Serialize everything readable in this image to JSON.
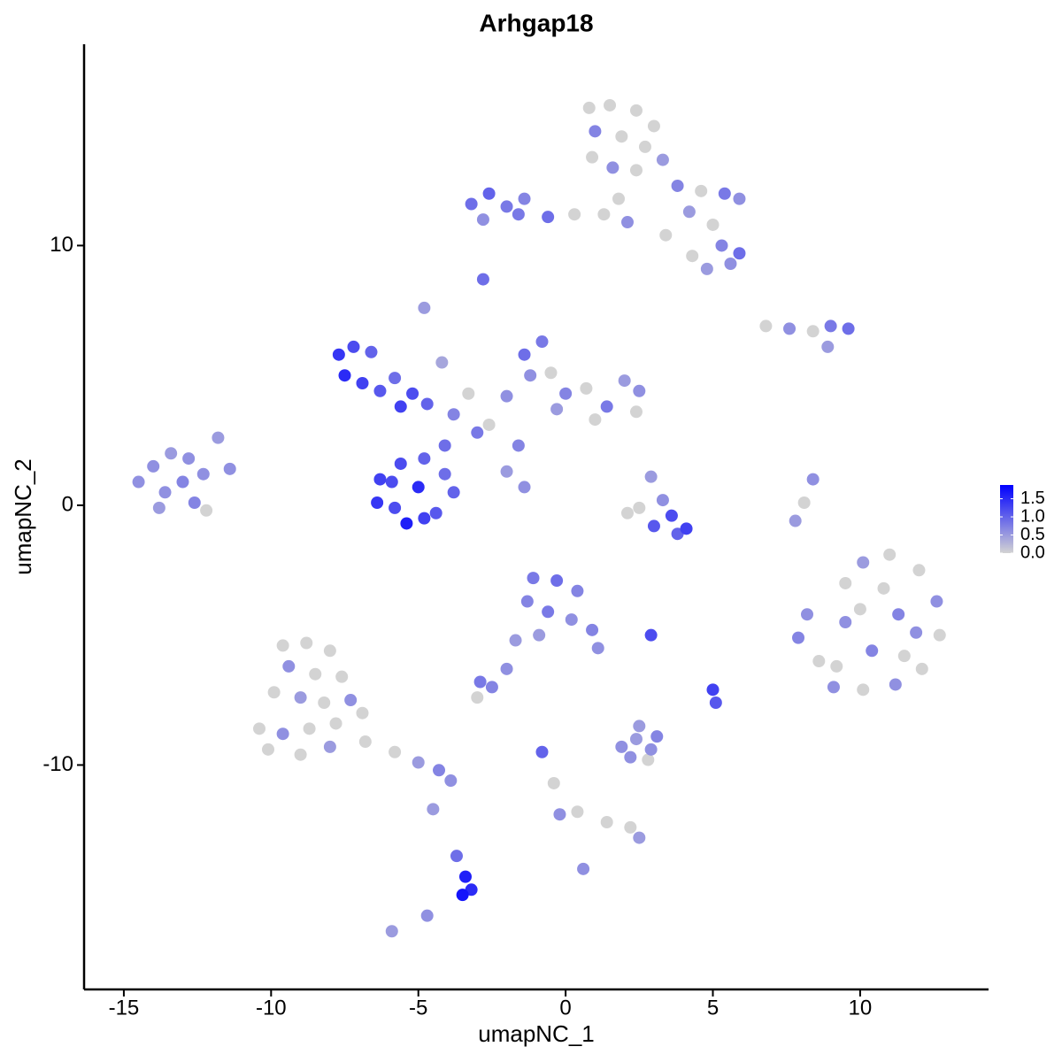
{
  "chart_data": {
    "type": "scatter",
    "title": "Arhgap18",
    "x_label": "umapNC_1",
    "y_label": "umapNC_2",
    "xlim": [
      -16.35,
      14.36
    ],
    "ylim": [
      -18.64,
      17.75
    ],
    "xticks": [
      -15,
      -10,
      -5,
      0,
      5,
      10
    ],
    "yticks": [
      -10,
      0,
      10
    ],
    "grid": false,
    "color_low": "#d3d3d3",
    "color_high": "#0000ff",
    "colorbar_lim": [
      0,
      1.88
    ],
    "colorbar_ticks": [
      {
        "value": 0,
        "label": "0.0"
      },
      {
        "value": 0.5,
        "label": "0.5"
      },
      {
        "value": 1,
        "label": "1.0"
      },
      {
        "value": 1.5,
        "label": "1.5"
      }
    ],
    "x": [
      0.8,
      1.5,
      2.4,
      3.0,
      1.0,
      1.9,
      2.7,
      0.9,
      1.6,
      2.4,
      3.3,
      1.8,
      2.1,
      1.3,
      3.8,
      4.6,
      5.4,
      5.9,
      4.2,
      5.0,
      5.3,
      5.9,
      5.6,
      4.8,
      4.3,
      3.4,
      -3.2,
      -2.6,
      -2.0,
      -1.4,
      -2.8,
      -0.6,
      0.3,
      -1.6,
      -2.8,
      6.8,
      7.6,
      8.4,
      9.0,
      9.6,
      8.9,
      -7.7,
      -7.2,
      -6.6,
      -7.5,
      -6.9,
      -6.3,
      -5.8,
      -5.2,
      -4.7,
      -5.6,
      -4.8,
      -4.2,
      -3.8,
      -3.3,
      -2.6,
      -2.0,
      -1.4,
      -0.8,
      -1.2,
      -0.5,
      0,
      0.7,
      1.4,
      2.0,
      2.5,
      2.4,
      1.0,
      -0.3,
      -1.6,
      -3.0,
      -4.1,
      -2.0,
      -1.4,
      -6.3,
      -5.6,
      -4.8,
      -4.1,
      -3.8,
      -6.4,
      -5.8,
      -5.0,
      -4.4,
      -5.4,
      -4.8,
      -5.9,
      -14.5,
      -14.0,
      -13.4,
      -12.8,
      -13.6,
      -13.0,
      -12.3,
      -11.8,
      -11.4,
      -12.6,
      -13.8,
      -12.2,
      2.9,
      3.3,
      2.5,
      3.6,
      4.1,
      3.0,
      2.1,
      3.8,
      8.4,
      8.1,
      7.8,
      8.2,
      7.9,
      8.6,
      9.1,
      9.5,
      10.1,
      11.0,
      12.0,
      12.6,
      12.7,
      12.1,
      11.2,
      10.1,
      10.4,
      9.5,
      11.3,
      10.8,
      11.9,
      9.2,
      10.0,
      11.5,
      -1.1,
      -0.3,
      0.4,
      -1.3,
      -0.6,
      0.2,
      0.9,
      -0.9,
      1.1,
      -1.7,
      -2.0,
      -2.9,
      -2.5,
      -3.0,
      2.9,
      5.0,
      5.1,
      -9.6,
      -8.8,
      -8.0,
      -9.4,
      -8.5,
      -7.6,
      -9.9,
      -9.0,
      -8.2,
      -7.3,
      -10.4,
      -9.6,
      -8.7,
      -7.8,
      -6.9,
      -10.1,
      -9.0,
      -8.0,
      -6.8,
      -5.8,
      -5.0,
      -4.3,
      -3.9,
      -4.5,
      -3.7,
      -3.4,
      -3.5,
      -3.2,
      -5.9,
      -4.7,
      1.9,
      2.4,
      2.9,
      3.1,
      2.2,
      2.8,
      2.5,
      -0.8,
      -0.4,
      -0.2,
      0.4,
      1.4,
      2.2,
      2.5,
      0.6
    ],
    "values": [
      15.3,
      15.4,
      15.2,
      14.6,
      14.4,
      14.2,
      13.8,
      13.4,
      13.0,
      12.9,
      13.3,
      11.8,
      10.9,
      11.2,
      12.3,
      12.1,
      12.0,
      11.8,
      11.3,
      10.8,
      10.0,
      9.7,
      9.3,
      9.1,
      9.6,
      10.4,
      11.6,
      12.0,
      11.5,
      11.8,
      11.0,
      11.1,
      11.2,
      11.2,
      8.7,
      6.9,
      6.8,
      6.7,
      6.9,
      6.8,
      6.1,
      5.8,
      6.1,
      5.9,
      5.0,
      4.7,
      4.4,
      4.9,
      4.3,
      3.9,
      3.8,
      7.6,
      5.5,
      3.5,
      4.3,
      3.1,
      4.2,
      5.8,
      6.3,
      5.0,
      5.1,
      4.3,
      4.5,
      3.8,
      4.8,
      4.4,
      3.6,
      3.3,
      3.7,
      2.3,
      2.8,
      2.3,
      1.3,
      0.7,
      1.0,
      1.6,
      1.8,
      1.2,
      0.5,
      0.1,
      -0.1,
      0.7,
      -0.3,
      -0.7,
      -0.5,
      0.9,
      0.9,
      1.5,
      2.0,
      1.8,
      0.5,
      0.9,
      1.2,
      2.6,
      1.4,
      0.1,
      -0.1,
      -0.2,
      1.1,
      0.2,
      -0.1,
      -0.4,
      -0.9,
      -0.8,
      -0.3,
      -1.1,
      1.0,
      0.1,
      -0.6,
      -4.2,
      -5.1,
      -6.0,
      -7.0,
      -3.0,
      -2.2,
      -1.9,
      -2.5,
      -3.7,
      -5.0,
      -6.3,
      -6.9,
      -7.1,
      -5.6,
      -4.5,
      -4.2,
      -3.2,
      -4.9,
      -6.2,
      -4.0,
      -5.8,
      -2.8,
      -2.9,
      -3.3,
      -3.7,
      -4.1,
      -4.4,
      -4.8,
      -5.0,
      -5.5,
      -5.2,
      -6.3,
      -6.8,
      -7.0,
      -7.4,
      -5.0,
      -7.1,
      -7.6,
      -5.4,
      -5.3,
      -5.6,
      -6.2,
      -6.5,
      -6.6,
      -7.2,
      -7.4,
      -7.6,
      -7.5,
      -8.6,
      -8.8,
      -8.6,
      -8.4,
      -8.0,
      -9.4,
      -9.6,
      -9.3,
      -9.1,
      -9.5,
      -9.9,
      -10.2,
      -10.6,
      -11.7,
      -13.5,
      -14.3,
      -15.0,
      -14.8,
      -16.4,
      -15.8,
      -9.3,
      -9.0,
      -9.4,
      -8.9,
      -9.7,
      -9.8,
      -8.5,
      -9.5,
      -10.7,
      -11.9,
      -11.8,
      -12.2,
      -12.4,
      -12.8,
      -14.0
    ],
    "expression": [
      0,
      0,
      0,
      0,
      0.7,
      0,
      0,
      0,
      0.6,
      0,
      0.5,
      0,
      0.6,
      0,
      0.7,
      0,
      0.8,
      0.6,
      0.5,
      0,
      0.7,
      0.9,
      0.6,
      0.5,
      0,
      0,
      0.9,
      1.0,
      0.8,
      0.7,
      0.6,
      0.9,
      0,
      0.8,
      0.9,
      0,
      0.6,
      0,
      0.8,
      0.9,
      0.5,
      1.4,
      1.2,
      1.0,
      1.5,
      1.3,
      1.1,
      0.9,
      1.2,
      1.0,
      1.3,
      0.5,
      0.4,
      0.7,
      0,
      0,
      0.6,
      0.9,
      0.8,
      0.6,
      0,
      0.7,
      0,
      0.8,
      0.5,
      0.6,
      0,
      0,
      0.5,
      0.7,
      0.8,
      0.9,
      0.5,
      0.6,
      1.3,
      1.2,
      1.0,
      0.9,
      1.0,
      1.4,
      1.2,
      1.5,
      1.1,
      1.6,
      1.3,
      1.2,
      0.6,
      0.6,
      0.5,
      0.6,
      0.6,
      0.7,
      0.6,
      0.5,
      0.6,
      0.7,
      0.5,
      0,
      0.5,
      0.6,
      0,
      1.2,
      1.3,
      1.1,
      0,
      1.0,
      0.6,
      0,
      0.5,
      0.6,
      0.7,
      0,
      0.6,
      0,
      0.5,
      0,
      0,
      0.6,
      0,
      0,
      0.6,
      0,
      0.7,
      0.6,
      0.7,
      0,
      0.6,
      0,
      0,
      0,
      0.8,
      0.9,
      0.7,
      0.7,
      0.8,
      0.6,
      0.7,
      0.5,
      0.6,
      0.5,
      0.6,
      0.8,
      0.7,
      0,
      1.2,
      1.3,
      1.1,
      0,
      0,
      0,
      0.6,
      0,
      0,
      0,
      0.5,
      0,
      0.6,
      0,
      0.6,
      0,
      0,
      0,
      0,
      0,
      0.5,
      0,
      0,
      0.5,
      0.7,
      0.6,
      0.5,
      0.9,
      1.6,
      1.7,
      1.5,
      0.5,
      0.6,
      0.6,
      0.5,
      0.6,
      0.7,
      0.6,
      0,
      0.5,
      1.0,
      0,
      0.6,
      0,
      0,
      0,
      0.5,
      0.6
    ]
  }
}
